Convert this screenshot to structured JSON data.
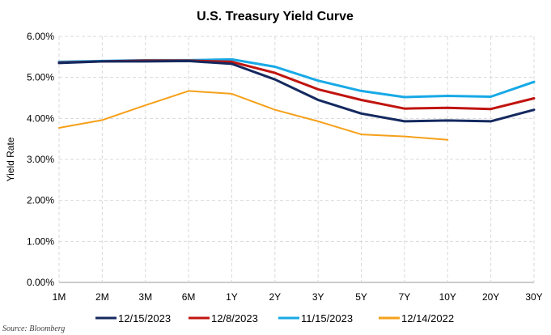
{
  "chart_data": {
    "type": "line",
    "title": "U.S. Treasury Yield Curve",
    "ylabel": "Yield Rate",
    "xlabel": "",
    "categories": [
      "1M",
      "2M",
      "3M",
      "6M",
      "1Y",
      "2Y",
      "3Y",
      "5Y",
      "7Y",
      "10Y",
      "20Y",
      "30Y"
    ],
    "y_ticks": [
      "0.00%",
      "1.00%",
      "2.00%",
      "3.00%",
      "4.00%",
      "5.00%",
      "6.00%"
    ],
    "ylim": [
      0,
      6
    ],
    "grid": "dashed, both axes",
    "legend_position": "bottom",
    "source": "Source: Bloomberg",
    "series": [
      {
        "name": "12/15/2023",
        "color": "#14295f",
        "values": [
          5.35,
          5.39,
          5.39,
          5.4,
          5.33,
          4.95,
          4.45,
          4.12,
          3.93,
          3.95,
          3.93,
          4.21
        ]
      },
      {
        "name": "12/8/2023",
        "color": "#c0140f",
        "values": [
          5.36,
          5.39,
          5.41,
          5.41,
          5.38,
          5.11,
          4.71,
          4.45,
          4.24,
          4.26,
          4.23,
          4.49
        ]
      },
      {
        "name": "11/15/2023",
        "color": "#17a9e6",
        "values": [
          5.38,
          5.4,
          5.42,
          5.42,
          5.44,
          5.26,
          4.92,
          4.67,
          4.52,
          4.55,
          4.53,
          4.89
        ]
      },
      {
        "name": "12/14/2022",
        "color": "#f5a01a",
        "values": [
          3.77,
          3.96,
          4.32,
          4.67,
          4.6,
          4.21,
          3.93,
          3.61,
          3.56,
          3.48,
          null,
          null
        ]
      }
    ]
  }
}
